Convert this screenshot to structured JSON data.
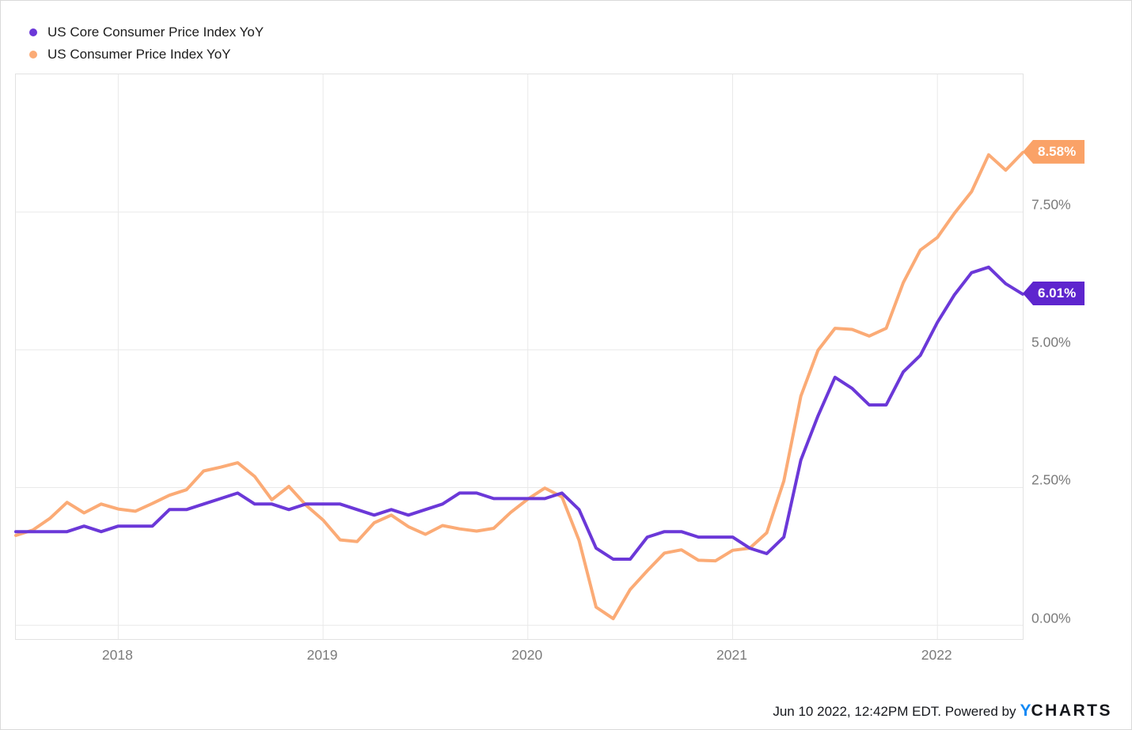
{
  "legend": {
    "items": [
      {
        "label": "US Core Consumer Price Index YoY",
        "color": "#6B38D8"
      },
      {
        "label": "US Consumer Price Index YoY",
        "color": "#FBAB76"
      }
    ]
  },
  "chart_data": {
    "type": "line",
    "title": "",
    "x_frequency": "monthly",
    "x_start": "2017-06",
    "x_end": "2022-05",
    "x_tick_labels": [
      "2018",
      "2019",
      "2020",
      "2021",
      "2022"
    ],
    "y_ticks": [
      {
        "value": 7.5,
        "label": "7.50%"
      },
      {
        "value": 5.0,
        "label": "5.00%"
      },
      {
        "value": 2.5,
        "label": "2.50%"
      },
      {
        "value": 0.0,
        "label": "0.00%"
      }
    ],
    "ylim": [
      -0.25,
      10.0
    ],
    "grid": true,
    "legend_position": "top-left",
    "series": [
      {
        "name": "US Consumer Price Index YoY",
        "color": "#FBAB76",
        "badge_color": "#FAA267",
        "end_label": "8.58%",
        "values": [
          1.63,
          1.73,
          1.94,
          2.23,
          2.04,
          2.2,
          2.11,
          2.07,
          2.21,
          2.36,
          2.46,
          2.8,
          2.87,
          2.95,
          2.7,
          2.28,
          2.52,
          2.18,
          1.91,
          1.55,
          1.52,
          1.86,
          2.0,
          1.79,
          1.65,
          1.81,
          1.75,
          1.71,
          1.76,
          2.05,
          2.29,
          2.49,
          2.33,
          1.54,
          0.33,
          0.12,
          0.65,
          0.99,
          1.31,
          1.37,
          1.18,
          1.17,
          1.36,
          1.4,
          1.68,
          2.62,
          4.16,
          4.99,
          5.39,
          5.37,
          5.25,
          5.39,
          6.22,
          6.81,
          7.04,
          7.48,
          7.87,
          8.54,
          8.26,
          8.58
        ]
      },
      {
        "name": "US Core Consumer Price Index YoY",
        "color": "#6B38D8",
        "badge_color": "#5E25CE",
        "end_label": "6.01%",
        "values": [
          1.7,
          1.7,
          1.7,
          1.7,
          1.8,
          1.7,
          1.8,
          1.8,
          1.8,
          2.1,
          2.1,
          2.2,
          2.3,
          2.4,
          2.2,
          2.2,
          2.1,
          2.2,
          2.2,
          2.2,
          2.1,
          2.0,
          2.1,
          2.0,
          2.1,
          2.2,
          2.4,
          2.4,
          2.3,
          2.3,
          2.3,
          2.3,
          2.4,
          2.1,
          1.4,
          1.2,
          1.2,
          1.6,
          1.7,
          1.7,
          1.6,
          1.6,
          1.6,
          1.4,
          1.3,
          1.6,
          3.0,
          3.8,
          4.5,
          4.3,
          4.0,
          4.0,
          4.6,
          4.9,
          5.5,
          6.0,
          6.4,
          6.5,
          6.2,
          6.01
        ]
      }
    ]
  },
  "footer": {
    "timestamp": "Jun 10 2022, 12:42PM EDT. Powered by",
    "logo_y": "Y",
    "logo_rest": "CHARTS"
  }
}
